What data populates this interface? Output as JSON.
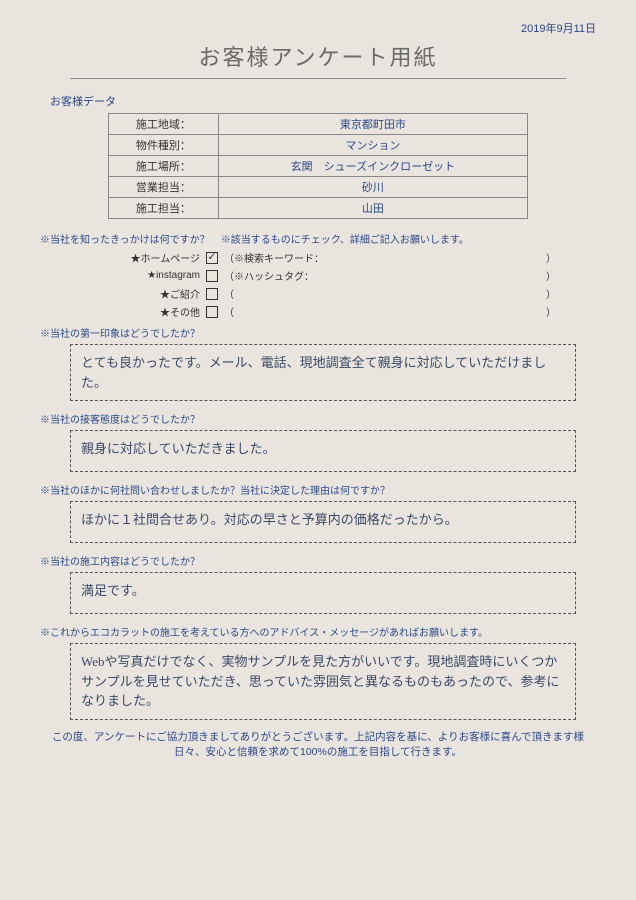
{
  "date": "2019年9月11日",
  "title": "お客様アンケート用紙",
  "customer_data_heading": "お客様データ",
  "data_table": {
    "rows": [
      {
        "label": "施工地域：",
        "value": "東京都町田市"
      },
      {
        "label": "物件種別：",
        "value": "マンション"
      },
      {
        "label": "施工場所：",
        "value": "玄関　シューズインクローゼット"
      },
      {
        "label": "営業担当：",
        "value": "砂川"
      },
      {
        "label": "施工担当：",
        "value": "山田"
      }
    ]
  },
  "q1": {
    "prompt_left": "※当社を知ったきっかけは何ですか？",
    "prompt_right": "※該当するものにチェック、詳細ご記入お願いします。",
    "options": [
      {
        "label": "★ホームページ",
        "checked": true,
        "hint_open": "（※検索キーワード：",
        "hint_close": "）"
      },
      {
        "label": "★instagram",
        "checked": false,
        "hint_open": "（※ハッシュタグ：",
        "hint_close": "）"
      },
      {
        "label": "★ご紹介",
        "checked": false,
        "hint_open": "（",
        "hint_close": "）"
      },
      {
        "label": "★その他",
        "checked": false,
        "hint_open": "（",
        "hint_close": "）"
      }
    ]
  },
  "q2": {
    "prompt": "※当社の第一印象はどうでしたか？",
    "answer": "とても良かったです。メール、電話、現地調査全て親身に対応していただけました。"
  },
  "q3": {
    "prompt": "※当社の接客態度はどうでしたか？",
    "answer": "親身に対応していただきました。"
  },
  "q4": {
    "prompt": "※当社のほかに何社問い合わせしましたか？当社に決定した理由は何ですか？",
    "answer": "ほかに１社問合せあり。対応の早さと予算内の価格だったから。"
  },
  "q5": {
    "prompt": "※当社の施工内容はどうでしたか？",
    "answer": "満足です。"
  },
  "q6": {
    "prompt": "※これからエコカラットの施工を考えている方へのアドバイス・メッセージがあればお願いします。",
    "answer": "Webや写真だけでなく、実物サンプルを見た方がいいです。現地調査時にいくつかサンプルを見せていただき、思っていた雰囲気と異なるものもあったので、参考になりました。"
  },
  "footer": "この度、アンケートにご協力頂きましてありがとうございます。上記内容を基に、よりお客様に喜んで頂きます様日々、安心と信頼を求めて100%の施工を目指して行きます。",
  "checkmark_glyph": "✓"
}
